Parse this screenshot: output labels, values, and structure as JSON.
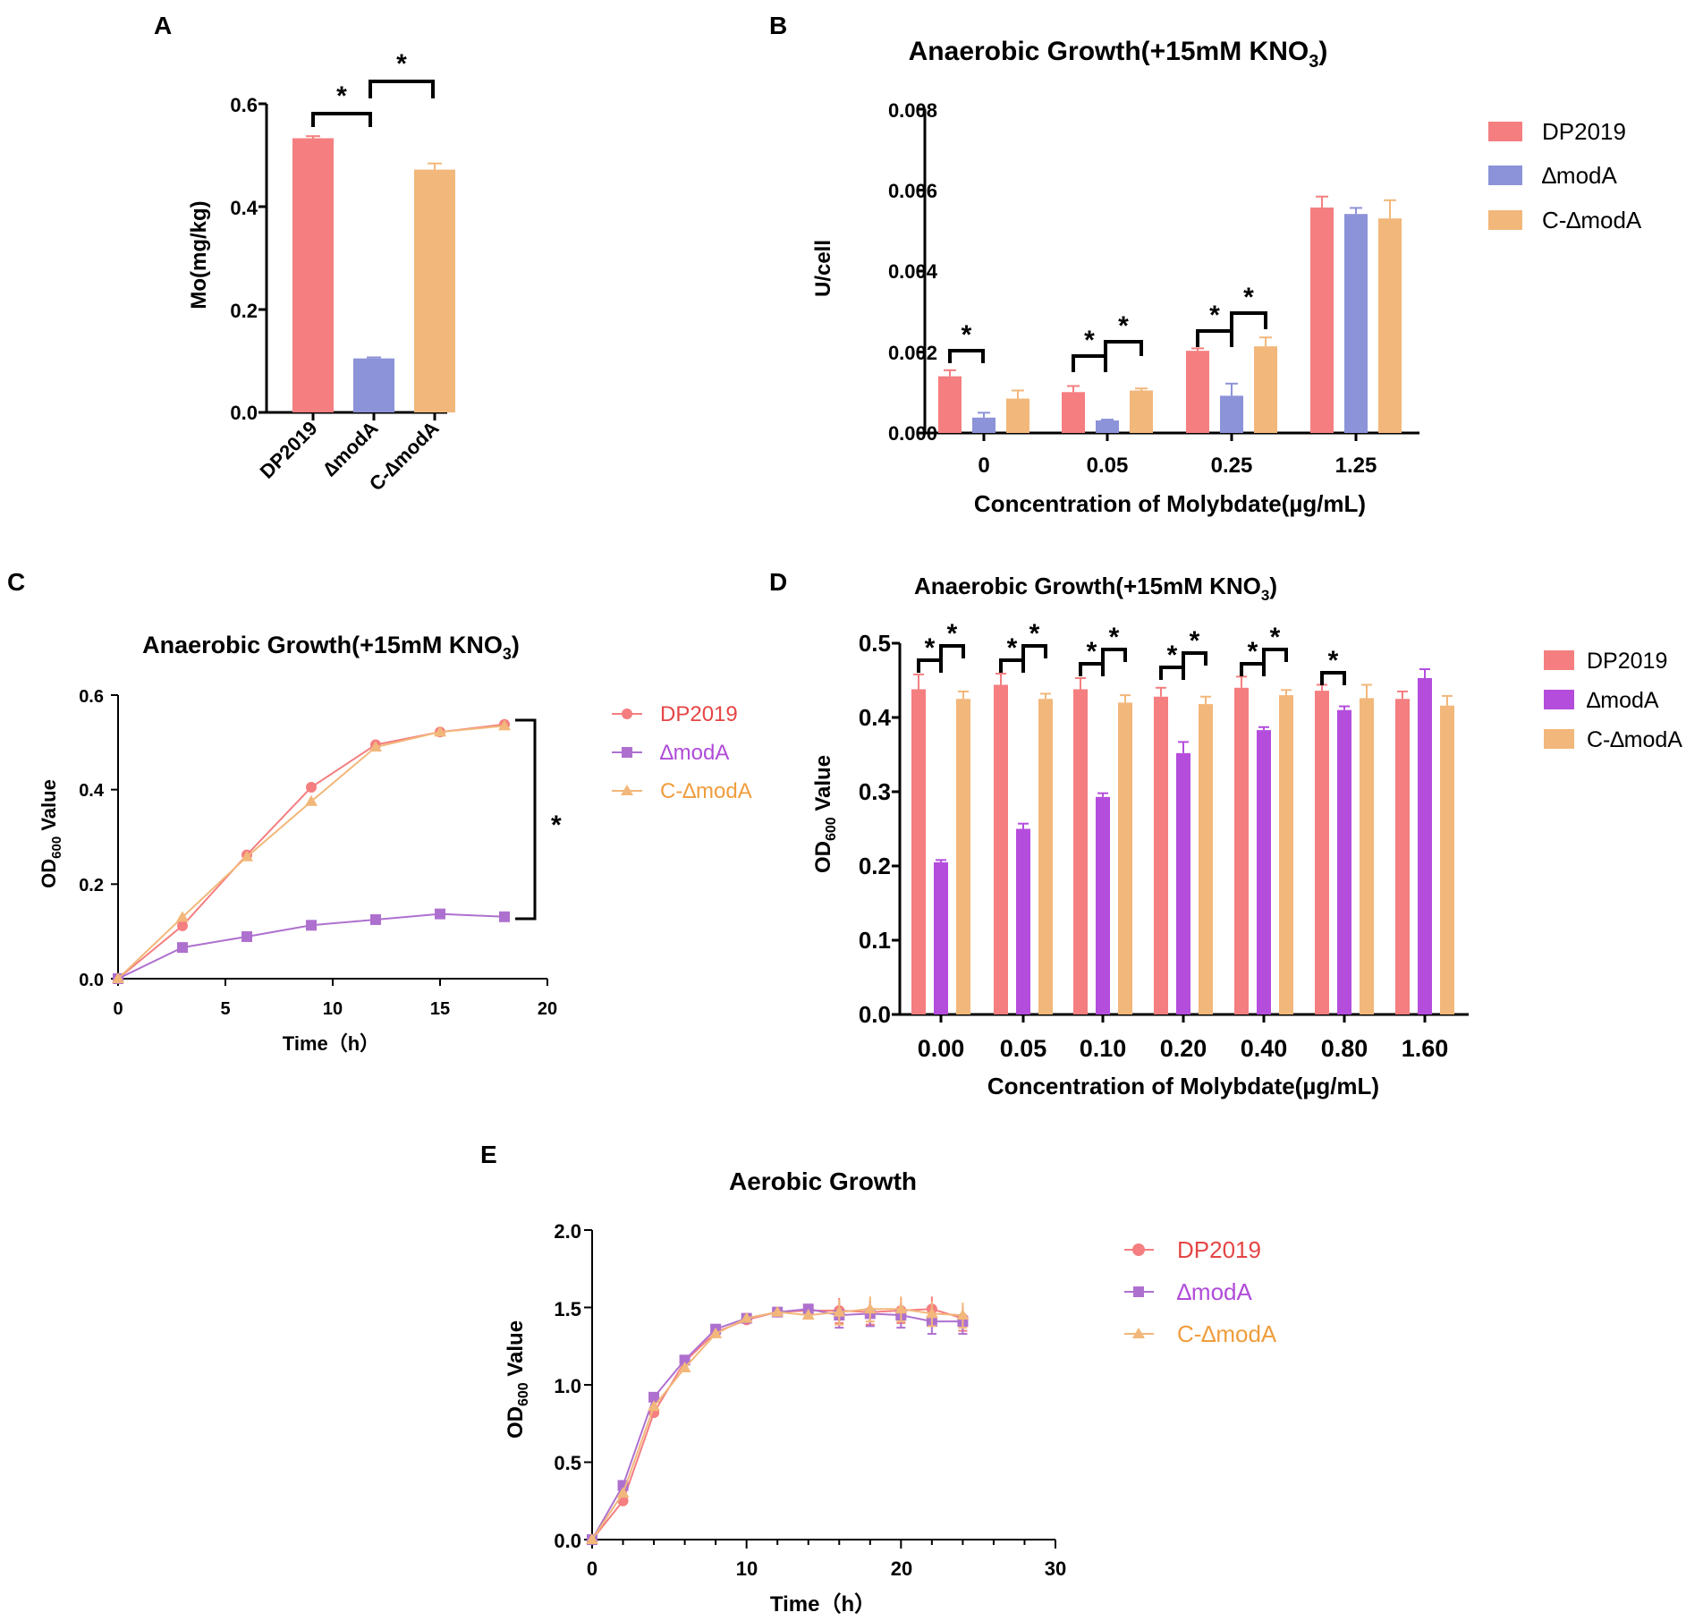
{
  "colors": {
    "dp2019": "#f47e80",
    "dmoda_ab": "#8c93d8",
    "dmoda_d": "#b44ddc",
    "dmoda_ce": "#ae70cf",
    "cmoda": "#f2b77a",
    "dp_line": "#f47e80",
    "legend_dp": "#e64545",
    "legend_dm": "#b04bd8",
    "legend_cm": "#ef9d3d"
  },
  "chart_data": [
    {
      "panel": "A",
      "type": "bar",
      "title": "",
      "categories": [
        "DP2019",
        "∆modA",
        "C-∆modA"
      ],
      "values": [
        0.533,
        0.105,
        0.472
      ],
      "errors": [
        0.004,
        0.002,
        0.012
      ],
      "ylabel": "Mo(mg/kg)",
      "ylim": [
        0,
        0.6
      ],
      "yticks": [
        "0.0",
        "0.2",
        "0.4",
        "0.6"
      ],
      "sig": [
        "*",
        "*"
      ]
    },
    {
      "panel": "B",
      "type": "bar",
      "title": "Anaerobic Growth(+15mM KNO",
      "title_sub": "3",
      "title_end": ")",
      "categories": [
        "0",
        "0.05",
        "0.25",
        "1.25"
      ],
      "series": [
        {
          "name": "DP2019",
          "values": [
            0.0014,
            0.00101,
            0.00203,
            0.00557
          ],
          "errors": [
            0.00015,
            0.00015,
            6e-05,
            0.00027
          ]
        },
        {
          "name": "∆modA",
          "values": [
            0.00038,
            0.00031,
            0.00092,
            0.00541
          ],
          "errors": [
            0.00012,
            2e-05,
            0.0003,
            0.00015
          ]
        },
        {
          "name": "C-∆modA",
          "values": [
            0.00085,
            0.00105,
            0.00214,
            0.0053
          ],
          "errors": [
            0.0002,
            5e-05,
            0.00022,
            0.00045
          ]
        }
      ],
      "xlabel": "Concentration of Molybdate(µg/mL)",
      "ylabel": "U/cell",
      "ylim": [
        0,
        0.008
      ],
      "yticks": [
        "0.000",
        "0.002",
        "0.004",
        "0.006",
        "0.008"
      ],
      "sig": [
        "*",
        "*",
        "*",
        "*",
        "*"
      ]
    },
    {
      "panel": "C",
      "type": "line",
      "title": "Anaerobic Growth(+15mM KNO",
      "title_sub": "3",
      "title_end": ")",
      "x": [
        0,
        3,
        6,
        9,
        12,
        15,
        18
      ],
      "series": [
        {
          "name": "DP2019",
          "values": [
            0.0,
            0.112,
            0.262,
            0.405,
            0.495,
            0.522,
            0.538
          ]
        },
        {
          "name": "∆modA",
          "values": [
            0.0,
            0.066,
            0.089,
            0.113,
            0.125,
            0.137,
            0.131
          ]
        },
        {
          "name": "C-∆modA",
          "values": [
            0.0,
            0.13,
            0.258,
            0.375,
            0.49,
            0.522,
            0.535
          ]
        }
      ],
      "xlabel": "Time（h）",
      "ylabel": "OD",
      "ylabel_sub": "600",
      "ylabel_end": " Value",
      "xlim": [
        0,
        20
      ],
      "ylim": [
        0,
        0.6
      ],
      "xticks": [
        "0",
        "5",
        "10",
        "15",
        "20"
      ],
      "yticks": [
        "0.0",
        "0.2",
        "0.4",
        "0.6"
      ],
      "sig": [
        "*"
      ]
    },
    {
      "panel": "D",
      "type": "bar",
      "title": "Anaerobic Growth(+15mM KNO",
      "title_sub": "3",
      "title_end": ")",
      "categories": [
        "0.00",
        "0.05",
        "0.10",
        "0.20",
        "0.40",
        "0.80",
        "1.60"
      ],
      "series": [
        {
          "name": "DP2019",
          "values": [
            0.438,
            0.444,
            0.438,
            0.428,
            0.44,
            0.436,
            0.425
          ],
          "errors": [
            0.02,
            0.015,
            0.015,
            0.012,
            0.015,
            0.008,
            0.01
          ]
        },
        {
          "name": "∆modA",
          "values": [
            0.205,
            0.25,
            0.293,
            0.352,
            0.383,
            0.41,
            0.453
          ],
          "errors": [
            0.003,
            0.007,
            0.005,
            0.015,
            0.004,
            0.005,
            0.012
          ]
        },
        {
          "name": "C-∆modA",
          "values": [
            0.425,
            0.425,
            0.42,
            0.418,
            0.43,
            0.426,
            0.416
          ],
          "errors": [
            0.01,
            0.007,
            0.01,
            0.01,
            0.007,
            0.018,
            0.013
          ]
        }
      ],
      "xlabel": "Concentration of Molybdate(µg/mL)",
      "ylabel": "OD",
      "ylabel_sub": "600",
      "ylabel_end": " Value",
      "ylim": [
        0,
        0.5
      ],
      "yticks": [
        "0.0",
        "0.1",
        "0.2",
        "0.3",
        "0.4",
        "0.5"
      ],
      "sig": [
        "*",
        "*",
        "*",
        "*",
        "*",
        "*",
        "*",
        "*",
        "*",
        "*",
        "*"
      ]
    },
    {
      "panel": "E",
      "type": "line",
      "title": "Aerobic Growth",
      "x": [
        0,
        2,
        4,
        6,
        8,
        10,
        12,
        14,
        16,
        18,
        20,
        22,
        24
      ],
      "series": [
        {
          "name": "DP2019",
          "values": [
            0.0,
            0.25,
            0.82,
            1.15,
            1.34,
            1.42,
            1.47,
            1.48,
            1.48,
            1.47,
            1.48,
            1.49,
            1.43
          ]
        },
        {
          "name": "∆modA",
          "values": [
            0.0,
            0.35,
            0.92,
            1.16,
            1.36,
            1.43,
            1.47,
            1.49,
            1.45,
            1.46,
            1.45,
            1.41,
            1.41
          ]
        },
        {
          "name": "C-∆modA",
          "values": [
            0.0,
            0.3,
            0.86,
            1.11,
            1.33,
            1.43,
            1.47,
            1.45,
            1.47,
            1.49,
            1.49,
            1.46,
            1.45
          ]
        }
      ],
      "xlabel": "Time（h）",
      "ylabel": "OD",
      "ylabel_sub": "600",
      "ylabel_end": " Value",
      "xlim": [
        0,
        30
      ],
      "ylim": [
        0,
        2.0
      ],
      "xticks": [
        "0",
        "10",
        "20",
        "30"
      ],
      "yticks": [
        "0.0",
        "0.5",
        "1.0",
        "1.5",
        "2.0"
      ]
    }
  ],
  "panel_labels": [
    "A",
    "B",
    "C",
    "D",
    "E"
  ]
}
